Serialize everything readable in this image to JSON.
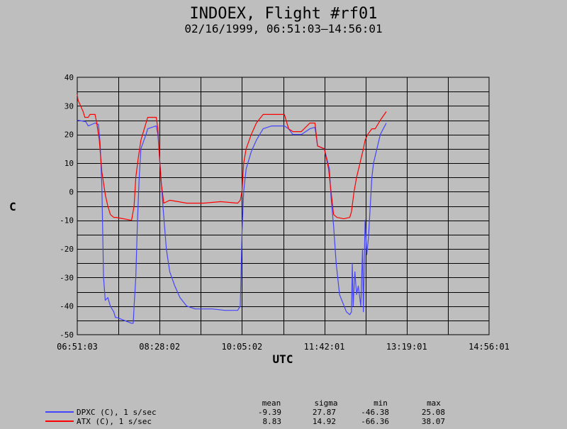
{
  "colors": {
    "background": "#bebebe",
    "grid": "#000000",
    "dpxc": "#4444ff",
    "atx": "#ff0000"
  },
  "chart_data": {
    "type": "line",
    "title": "INDOEX, Flight #rf01",
    "subtitle": "02/16/1999, 06:51:03–14:56:01",
    "xlabel": "UTC",
    "ylabel": "C",
    "ylim": [
      -50,
      40
    ],
    "xlim": [
      "06:51:03",
      "14:56:01"
    ],
    "x_ticks": [
      "06:51:03",
      "08:28:02",
      "10:05:02",
      "11:42:01",
      "13:19:01",
      "14:56:01"
    ],
    "y_ticks": [
      "40",
      "30",
      "20",
      "10",
      "0",
      "-10",
      "-20",
      "-30",
      "-40",
      "-50"
    ],
    "grid": true,
    "stats_headers": [
      "mean",
      "sigma",
      "min",
      "max"
    ],
    "series": [
      {
        "name": "DPXC (C), 1 s/sec",
        "stats": [
          "-9.39",
          "27.87",
          "-46.38",
          "25.08"
        ],
        "points": [
          [
            "06:51:03",
            25
          ],
          [
            "07:01:00",
            24.5
          ],
          [
            "07:04:00",
            23
          ],
          [
            "07:12:00",
            24
          ],
          [
            "07:16:00",
            23.5
          ],
          [
            "07:18:00",
            17
          ],
          [
            "07:20:00",
            2
          ],
          [
            "07:22:00",
            -30
          ],
          [
            "07:24:00",
            -38
          ],
          [
            "07:27:00",
            -37
          ],
          [
            "07:30:00",
            -40
          ],
          [
            "07:34:00",
            -42
          ],
          [
            "07:36:00",
            -44
          ],
          [
            "07:38:00",
            -44
          ],
          [
            "07:55:00",
            -46
          ],
          [
            "07:57:00",
            -46
          ],
          [
            "07:58:00",
            -40
          ],
          [
            "08:00:00",
            -30
          ],
          [
            "08:02:00",
            -10
          ],
          [
            "08:04:00",
            5
          ],
          [
            "08:06:00",
            15
          ],
          [
            "08:12:00",
            20
          ],
          [
            "08:14:00",
            22
          ],
          [
            "08:24:00",
            23
          ],
          [
            "08:26:00",
            20
          ],
          [
            "08:28:00",
            12
          ],
          [
            "08:32:00",
            -5
          ],
          [
            "08:36:00",
            -20
          ],
          [
            "08:40:00",
            -28
          ],
          [
            "08:46:00",
            -33
          ],
          [
            "08:52:00",
            -37
          ],
          [
            "09:00:00",
            -40
          ],
          [
            "09:10:00",
            -41
          ],
          [
            "09:30:00",
            -41
          ],
          [
            "09:45:00",
            -41.5
          ],
          [
            "10:00:00",
            -41.5
          ],
          [
            "10:03:00",
            -40
          ],
          [
            "10:05:00",
            -15
          ],
          [
            "10:07:00",
            0
          ],
          [
            "10:10:00",
            8
          ],
          [
            "10:16:00",
            14
          ],
          [
            "10:22:00",
            18
          ],
          [
            "10:30:00",
            22
          ],
          [
            "10:40:00",
            23
          ],
          [
            "10:55:00",
            23
          ],
          [
            "11:00:00",
            22
          ],
          [
            "11:05:00",
            20
          ],
          [
            "11:15:00",
            20
          ],
          [
            "11:25:00",
            22
          ],
          [
            "11:31:00",
            22.5
          ],
          [
            "11:34:00",
            16
          ],
          [
            "11:42:00",
            15
          ],
          [
            "11:48:00",
            8
          ],
          [
            "11:50:00",
            -2
          ],
          [
            "11:53:00",
            -12
          ],
          [
            "11:56:00",
            -25
          ],
          [
            "12:00:00",
            -36
          ],
          [
            "12:08:00",
            -42
          ],
          [
            "12:12:00",
            -43
          ],
          [
            "12:14:00",
            -42
          ],
          [
            "12:15:00",
            -25
          ],
          [
            "12:16:00",
            -40
          ],
          [
            "12:18:00",
            -28
          ],
          [
            "12:20:00",
            -36
          ],
          [
            "12:22:00",
            -33
          ],
          [
            "12:25:00",
            -40
          ],
          [
            "12:27:00",
            -20
          ],
          [
            "12:28:00",
            -42
          ],
          [
            "12:30:00",
            -10
          ],
          [
            "12:32:00",
            -22
          ],
          [
            "12:34:00",
            -16
          ],
          [
            "12:38:00",
            5
          ],
          [
            "12:40:00",
            10
          ],
          [
            "12:44:00",
            15
          ],
          [
            "12:48:00",
            20
          ],
          [
            "12:55:00",
            24
          ]
        ]
      },
      {
        "name": "ATX (C), 1 s/sec",
        "stats": [
          "8.83",
          "14.92",
          "-66.36",
          "38.07"
        ],
        "points": [
          [
            "06:51:03",
            34
          ],
          [
            "06:52:00",
            32
          ],
          [
            "06:55:00",
            30
          ],
          [
            "06:58:00",
            28
          ],
          [
            "07:00:00",
            26
          ],
          [
            "07:04:00",
            26
          ],
          [
            "07:06:00",
            27
          ],
          [
            "07:12:00",
            27
          ],
          [
            "07:14:00",
            24
          ],
          [
            "07:17:00",
            18
          ],
          [
            "07:20:00",
            7
          ],
          [
            "07:24:00",
            -1
          ],
          [
            "07:27:00",
            -5
          ],
          [
            "07:30:00",
            -8
          ],
          [
            "07:34:00",
            -9
          ],
          [
            "07:37:00",
            -9
          ],
          [
            "07:55:00",
            -10
          ],
          [
            "07:58:00",
            -5
          ],
          [
            "08:00:00",
            5
          ],
          [
            "08:03:00",
            12
          ],
          [
            "08:06:00",
            18
          ],
          [
            "08:10:00",
            22
          ],
          [
            "08:14:00",
            26
          ],
          [
            "08:24:00",
            26
          ],
          [
            "08:26:00",
            22
          ],
          [
            "08:28:00",
            12
          ],
          [
            "08:30:00",
            3
          ],
          [
            "08:33:00",
            -4
          ],
          [
            "08:40:00",
            -3
          ],
          [
            "08:50:00",
            -3.5
          ],
          [
            "09:00:00",
            -4
          ],
          [
            "09:20:00",
            -4
          ],
          [
            "09:40:00",
            -3.5
          ],
          [
            "10:00:00",
            -4
          ],
          [
            "10:03:00",
            -3
          ],
          [
            "10:05:00",
            0
          ],
          [
            "10:07:00",
            10
          ],
          [
            "10:10:00",
            15
          ],
          [
            "10:16:00",
            20
          ],
          [
            "10:22:00",
            24
          ],
          [
            "10:30:00",
            27
          ],
          [
            "10:40:00",
            27
          ],
          [
            "10:55:00",
            27
          ],
          [
            "11:00:00",
            22
          ],
          [
            "11:05:00",
            21
          ],
          [
            "11:15:00",
            21
          ],
          [
            "11:25:00",
            24
          ],
          [
            "11:31:00",
            24
          ],
          [
            "11:34:00",
            16
          ],
          [
            "11:42:00",
            15
          ],
          [
            "11:47:00",
            8
          ],
          [
            "11:50:00",
            0
          ],
          [
            "11:53:00",
            -8
          ],
          [
            "11:57:00",
            -9
          ],
          [
            "12:05:00",
            -9.5
          ],
          [
            "12:12:00",
            -9
          ],
          [
            "12:14:00",
            -7
          ],
          [
            "12:17:00",
            0
          ],
          [
            "12:20:00",
            5
          ],
          [
            "12:24:00",
            10
          ],
          [
            "12:28:00",
            15
          ],
          [
            "12:30:00",
            18
          ],
          [
            "12:33:00",
            20
          ],
          [
            "12:38:00",
            22
          ],
          [
            "12:42:00",
            22
          ],
          [
            "12:48:00",
            25
          ],
          [
            "12:55:00",
            28
          ]
        ]
      }
    ]
  }
}
